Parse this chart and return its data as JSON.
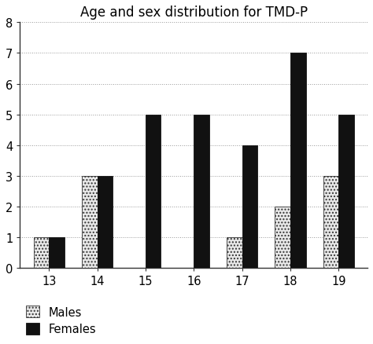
{
  "title": "Age and sex distribution for TMD-P",
  "ages": [
    13,
    14,
    15,
    16,
    17,
    18,
    19
  ],
  "males": [
    1,
    3,
    0,
    0,
    1,
    2,
    3
  ],
  "females": [
    1,
    3,
    5,
    5,
    4,
    7,
    5
  ],
  "ylim": [
    0,
    8
  ],
  "yticks": [
    0,
    1,
    2,
    3,
    4,
    5,
    6,
    7,
    8
  ],
  "bar_width": 0.32,
  "male_hatch": "....",
  "male_facecolor": "#e8e8e8",
  "male_edgecolor": "#333333",
  "female_facecolor": "#111111",
  "female_edgecolor": "#111111",
  "background_color": "#ffffff",
  "grid_color": "#999999",
  "grid_style": ":",
  "title_fontsize": 12,
  "tick_fontsize": 10.5,
  "legend_fontsize": 10.5
}
